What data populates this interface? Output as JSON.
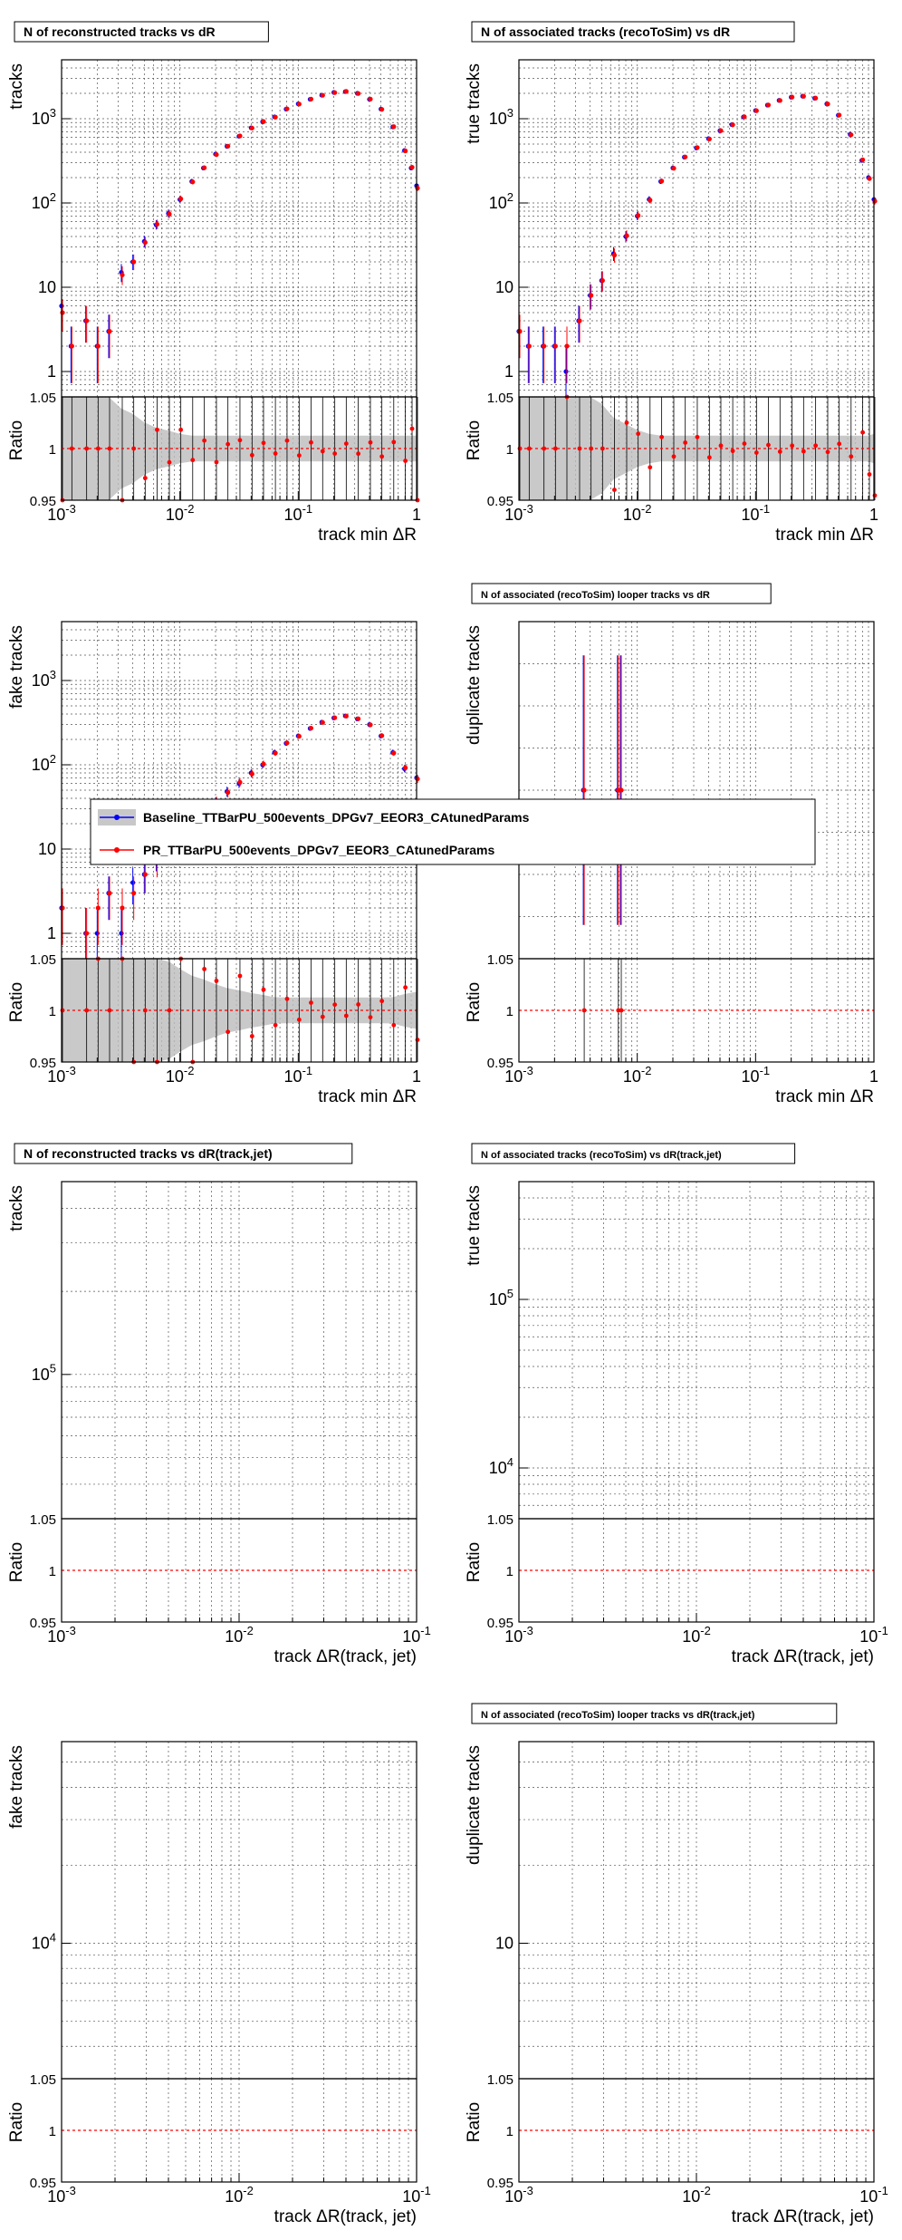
{
  "colors": {
    "baseline": "#0000ff",
    "pr": "#ff0000",
    "band": "#bbbbbb",
    "grid": "#555555"
  },
  "legend": {
    "entries": [
      {
        "name": "Baseline_TTBarPU_500events_DPGv7_EEOR3_CAtunedParams",
        "color": "#0000ff"
      },
      {
        "name": "PR_TTBarPU_500events_DPGv7_EEOR3_CAtunedParams",
        "color": "#ff0000"
      }
    ]
  },
  "chart_data": [
    {
      "type": "scatter",
      "title": "N of reconstructed tracks vs dR",
      "ylabel": "tracks",
      "xlabel": "track min   ΔR",
      "ratio_label": "Ratio",
      "log_x": true,
      "log_y": true,
      "xlim": [
        0.001,
        1
      ],
      "ylim": [
        0.5,
        5000
      ],
      "xticks": [
        "10^-3",
        "10^-2",
        "10^-1",
        "1"
      ],
      "yticks": [
        "1",
        "10",
        "10^2",
        "10^3"
      ],
      "ratio_ylim": [
        0.95,
        1.05
      ],
      "ratio_yticks": [
        "0.95",
        "1",
        "1.05"
      ],
      "series": [
        {
          "name": "Baseline_TTBarPU_500events_DPGv7_EEOR3_CAtunedParams",
          "x": [
            0.001,
            0.0012,
            0.0016,
            0.002,
            0.0025,
            0.0032,
            0.004,
            0.005,
            0.0063,
            0.008,
            0.01,
            0.0126,
            0.0158,
            0.02,
            0.025,
            0.0316,
            0.04,
            0.05,
            0.063,
            0.079,
            0.1,
            0.126,
            0.158,
            0.2,
            0.25,
            0.316,
            0.4,
            0.5,
            0.63,
            0.79,
            0.9,
            1.0
          ],
          "y": [
            6,
            2,
            4,
            2,
            3,
            15,
            20,
            35,
            55,
            75,
            110,
            180,
            260,
            380,
            470,
            620,
            780,
            920,
            1050,
            1300,
            1500,
            1700,
            1900,
            2050,
            2100,
            2000,
            1700,
            1300,
            800,
            420,
            260,
            160
          ]
        },
        {
          "name": "PR_TTBarPU_500events_DPGv7_EEOR3_CAtunedParams",
          "x": [
            0.001,
            0.0012,
            0.0016,
            0.002,
            0.0025,
            0.0032,
            0.004,
            0.005,
            0.0063,
            0.008,
            0.01,
            0.0126,
            0.0158,
            0.02,
            0.025,
            0.0316,
            0.04,
            0.05,
            0.063,
            0.079,
            0.1,
            0.126,
            0.158,
            0.2,
            0.25,
            0.316,
            0.4,
            0.5,
            0.63,
            0.79,
            0.9,
            1.0
          ],
          "y": [
            5,
            2,
            4,
            2,
            3,
            14,
            20,
            34,
            56,
            74,
            112,
            178,
            262,
            375,
            472,
            625,
            775,
            925,
            1045,
            1310,
            1490,
            1710,
            1895,
            2040,
            2110,
            1990,
            1710,
            1290,
            805,
            415,
            265,
            150
          ]
        }
      ]
    },
    {
      "type": "scatter",
      "title": "N of associated tracks (recoToSim) vs dR",
      "ylabel": "true tracks",
      "xlabel": "track min   ΔR",
      "ratio_label": "Ratio",
      "log_x": true,
      "log_y": true,
      "xlim": [
        0.001,
        1
      ],
      "ylim": [
        0.5,
        5000
      ],
      "xticks": [
        "10^-3",
        "10^-2",
        "10^-1",
        "1"
      ],
      "yticks": [
        "1",
        "10",
        "10^2",
        "10^3"
      ],
      "ratio_ylim": [
        0.95,
        1.05
      ],
      "ratio_yticks": [
        "0.95",
        "1",
        "1.05"
      ],
      "series": [
        {
          "name": "Baseline_TTBarPU_500events_DPGv7_EEOR3_CAtunedParams",
          "x": [
            0.001,
            0.0012,
            0.0016,
            0.002,
            0.0025,
            0.0032,
            0.004,
            0.005,
            0.0063,
            0.008,
            0.01,
            0.0126,
            0.0158,
            0.02,
            0.025,
            0.0316,
            0.04,
            0.05,
            0.063,
            0.079,
            0.1,
            0.126,
            0.158,
            0.2,
            0.25,
            0.316,
            0.4,
            0.5,
            0.63,
            0.79,
            0.9,
            1.0
          ],
          "y": [
            3,
            2,
            2,
            2,
            1,
            4,
            8,
            12,
            25,
            40,
            70,
            110,
            180,
            260,
            350,
            450,
            580,
            720,
            850,
            1050,
            1250,
            1450,
            1650,
            1800,
            1850,
            1750,
            1500,
            1100,
            650,
            320,
            200,
            110
          ]
        },
        {
          "name": "PR_TTBarPU_500events_DPGv7_EEOR3_CAtunedParams",
          "x": [
            0.001,
            0.0012,
            0.0016,
            0.002,
            0.0025,
            0.0032,
            0.004,
            0.005,
            0.0063,
            0.008,
            0.01,
            0.0126,
            0.0158,
            0.02,
            0.025,
            0.0316,
            0.04,
            0.05,
            0.063,
            0.079,
            0.1,
            0.126,
            0.158,
            0.2,
            0.25,
            0.316,
            0.4,
            0.5,
            0.63,
            0.79,
            0.9,
            1.0
          ],
          "y": [
            3,
            2,
            2,
            2,
            2,
            4,
            8,
            12,
            24,
            41,
            71,
            108,
            182,
            258,
            352,
            455,
            575,
            722,
            848,
            1055,
            1245,
            1455,
            1645,
            1805,
            1845,
            1755,
            1495,
            1105,
            645,
            325,
            195,
            105
          ]
        }
      ]
    },
    {
      "type": "scatter",
      "title": "",
      "ylabel": "fake tracks",
      "xlabel": "track min   ΔR",
      "ratio_label": "Ratio",
      "log_x": true,
      "log_y": true,
      "xlim": [
        0.001,
        1
      ],
      "ylim": [
        0.5,
        5000
      ],
      "xticks": [
        "10^-3",
        "10^-2",
        "10^-1",
        "1"
      ],
      "yticks": [
        "1",
        "10",
        "10^2",
        "10^3"
      ],
      "ratio_ylim": [
        0.95,
        1.05
      ],
      "ratio_yticks": [
        "0.95",
        "1",
        "1.05"
      ],
      "series": [
        {
          "name": "Baseline_TTBarPU_500events_DPGv7_EEOR3_CAtunedParams",
          "x": [
            0.001,
            0.0016,
            0.002,
            0.0025,
            0.0032,
            0.004,
            0.005,
            0.0063,
            0.008,
            0.01,
            0.0126,
            0.0158,
            0.02,
            0.025,
            0.0316,
            0.04,
            0.05,
            0.063,
            0.079,
            0.1,
            0.126,
            0.158,
            0.2,
            0.25,
            0.316,
            0.4,
            0.5,
            0.63,
            0.79,
            1.0
          ],
          "y": [
            2,
            1,
            1,
            3,
            1,
            4,
            5,
            8,
            10,
            14,
            20,
            25,
            35,
            48,
            60,
            80,
            100,
            140,
            180,
            220,
            270,
            320,
            360,
            380,
            350,
            300,
            220,
            140,
            90,
            70
          ]
        },
        {
          "name": "PR_TTBarPU_500events_DPGv7_EEOR3_CAtunedParams",
          "x": [
            0.001,
            0.0016,
            0.002,
            0.0025,
            0.0032,
            0.004,
            0.005,
            0.0063,
            0.008,
            0.01,
            0.0126,
            0.0158,
            0.02,
            0.025,
            0.0316,
            0.04,
            0.05,
            0.063,
            0.079,
            0.1,
            0.126,
            0.158,
            0.2,
            0.25,
            0.316,
            0.4,
            0.5,
            0.63,
            0.79,
            1.0
          ],
          "y": [
            2,
            1,
            2,
            3,
            2,
            3,
            5,
            7,
            10,
            15,
            19,
            26,
            36,
            47,
            62,
            78,
            102,
            138,
            182,
            218,
            272,
            318,
            362,
            378,
            352,
            298,
            222,
            138,
            92,
            68
          ]
        }
      ]
    },
    {
      "type": "scatter",
      "title": "N of associated (recoToSim) looper tracks vs dR",
      "ylabel": "duplicate tracks",
      "xlabel": "track min   ΔR",
      "ratio_label": "Ratio",
      "log_x": true,
      "log_y": false,
      "xlim": [
        0.001,
        1
      ],
      "ylim": [
        0,
        2
      ],
      "xticks": [
        "10^-3",
        "10^-2",
        "10^-1",
        "1"
      ],
      "yticks": [],
      "ratio_ylim": [
        0.95,
        1.05
      ],
      "ratio_yticks": [
        "0.95",
        "1",
        "1.05"
      ],
      "series": [
        {
          "name": "Baseline_TTBarPU_500events_DPGv7_EEOR3_CAtunedParams",
          "x": [
            0.0035,
            0.0068,
            0.0072
          ],
          "y": [
            1,
            1,
            1
          ]
        },
        {
          "name": "PR_TTBarPU_500events_DPGv7_EEOR3_CAtunedParams",
          "x": [
            0.0035,
            0.0068,
            0.0072
          ],
          "y": [
            1,
            1,
            1
          ]
        }
      ]
    },
    {
      "type": "scatter",
      "title": "N of reconstructed tracks vs dR(track,jet)",
      "ylabel": "tracks",
      "xlabel": "track    ΔR(track, jet)",
      "ratio_label": "Ratio",
      "log_x": true,
      "log_y": true,
      "xlim": [
        0.001,
        0.1
      ],
      "ylim": [
        30000,
        500000
      ],
      "xticks": [
        "10^-3",
        "10^-2",
        "10^-1"
      ],
      "yticks": [
        "10^5"
      ],
      "ratio_ylim": [
        0.95,
        1.05
      ],
      "ratio_yticks": [
        "0.95",
        "1",
        "1.05"
      ],
      "series": []
    },
    {
      "type": "scatter",
      "title": "N of associated tracks (recoToSim) vs dR(track,jet)",
      "ylabel": "true tracks",
      "xlabel": "track    ΔR(track, jet)",
      "ratio_label": "Ratio",
      "log_x": true,
      "log_y": true,
      "xlim": [
        0.001,
        0.1
      ],
      "ylim": [
        5000,
        500000
      ],
      "xticks": [
        "10^-3",
        "10^-2",
        "10^-1"
      ],
      "yticks": [
        "10^4",
        "10^5"
      ],
      "ratio_ylim": [
        0.95,
        1.05
      ],
      "ratio_yticks": [
        "0.95",
        "1",
        "1.05"
      ],
      "series": []
    },
    {
      "type": "scatter",
      "title": "",
      "ylabel": "fake tracks",
      "xlabel": "track    ΔR(track, jet)",
      "ratio_label": "Ratio",
      "log_x": true,
      "log_y": true,
      "xlim": [
        0.001,
        0.1
      ],
      "ylim": [
        3000,
        60000
      ],
      "xticks": [
        "10^-3",
        "10^-2",
        "10^-1"
      ],
      "yticks": [
        "10^4"
      ],
      "ratio_ylim": [
        0.95,
        1.05
      ],
      "ratio_yticks": [
        "0.95",
        "1",
        "1.05"
      ],
      "series": []
    },
    {
      "type": "scatter",
      "title": "N of associated (recoToSim) looper tracks vs dR(track,jet)",
      "ylabel": "duplicate tracks",
      "xlabel": "track    ΔR(track, jet)",
      "ratio_label": "Ratio",
      "log_x": true,
      "log_y": true,
      "xlim": [
        0.001,
        0.1
      ],
      "ylim": [
        3,
        60
      ],
      "xticks": [
        "10^-3",
        "10^-2",
        "10^-1"
      ],
      "yticks": [
        "10"
      ],
      "ratio_ylim": [
        0.95,
        1.05
      ],
      "ratio_yticks": [
        "0.95",
        "1",
        "1.05"
      ],
      "series": []
    }
  ]
}
